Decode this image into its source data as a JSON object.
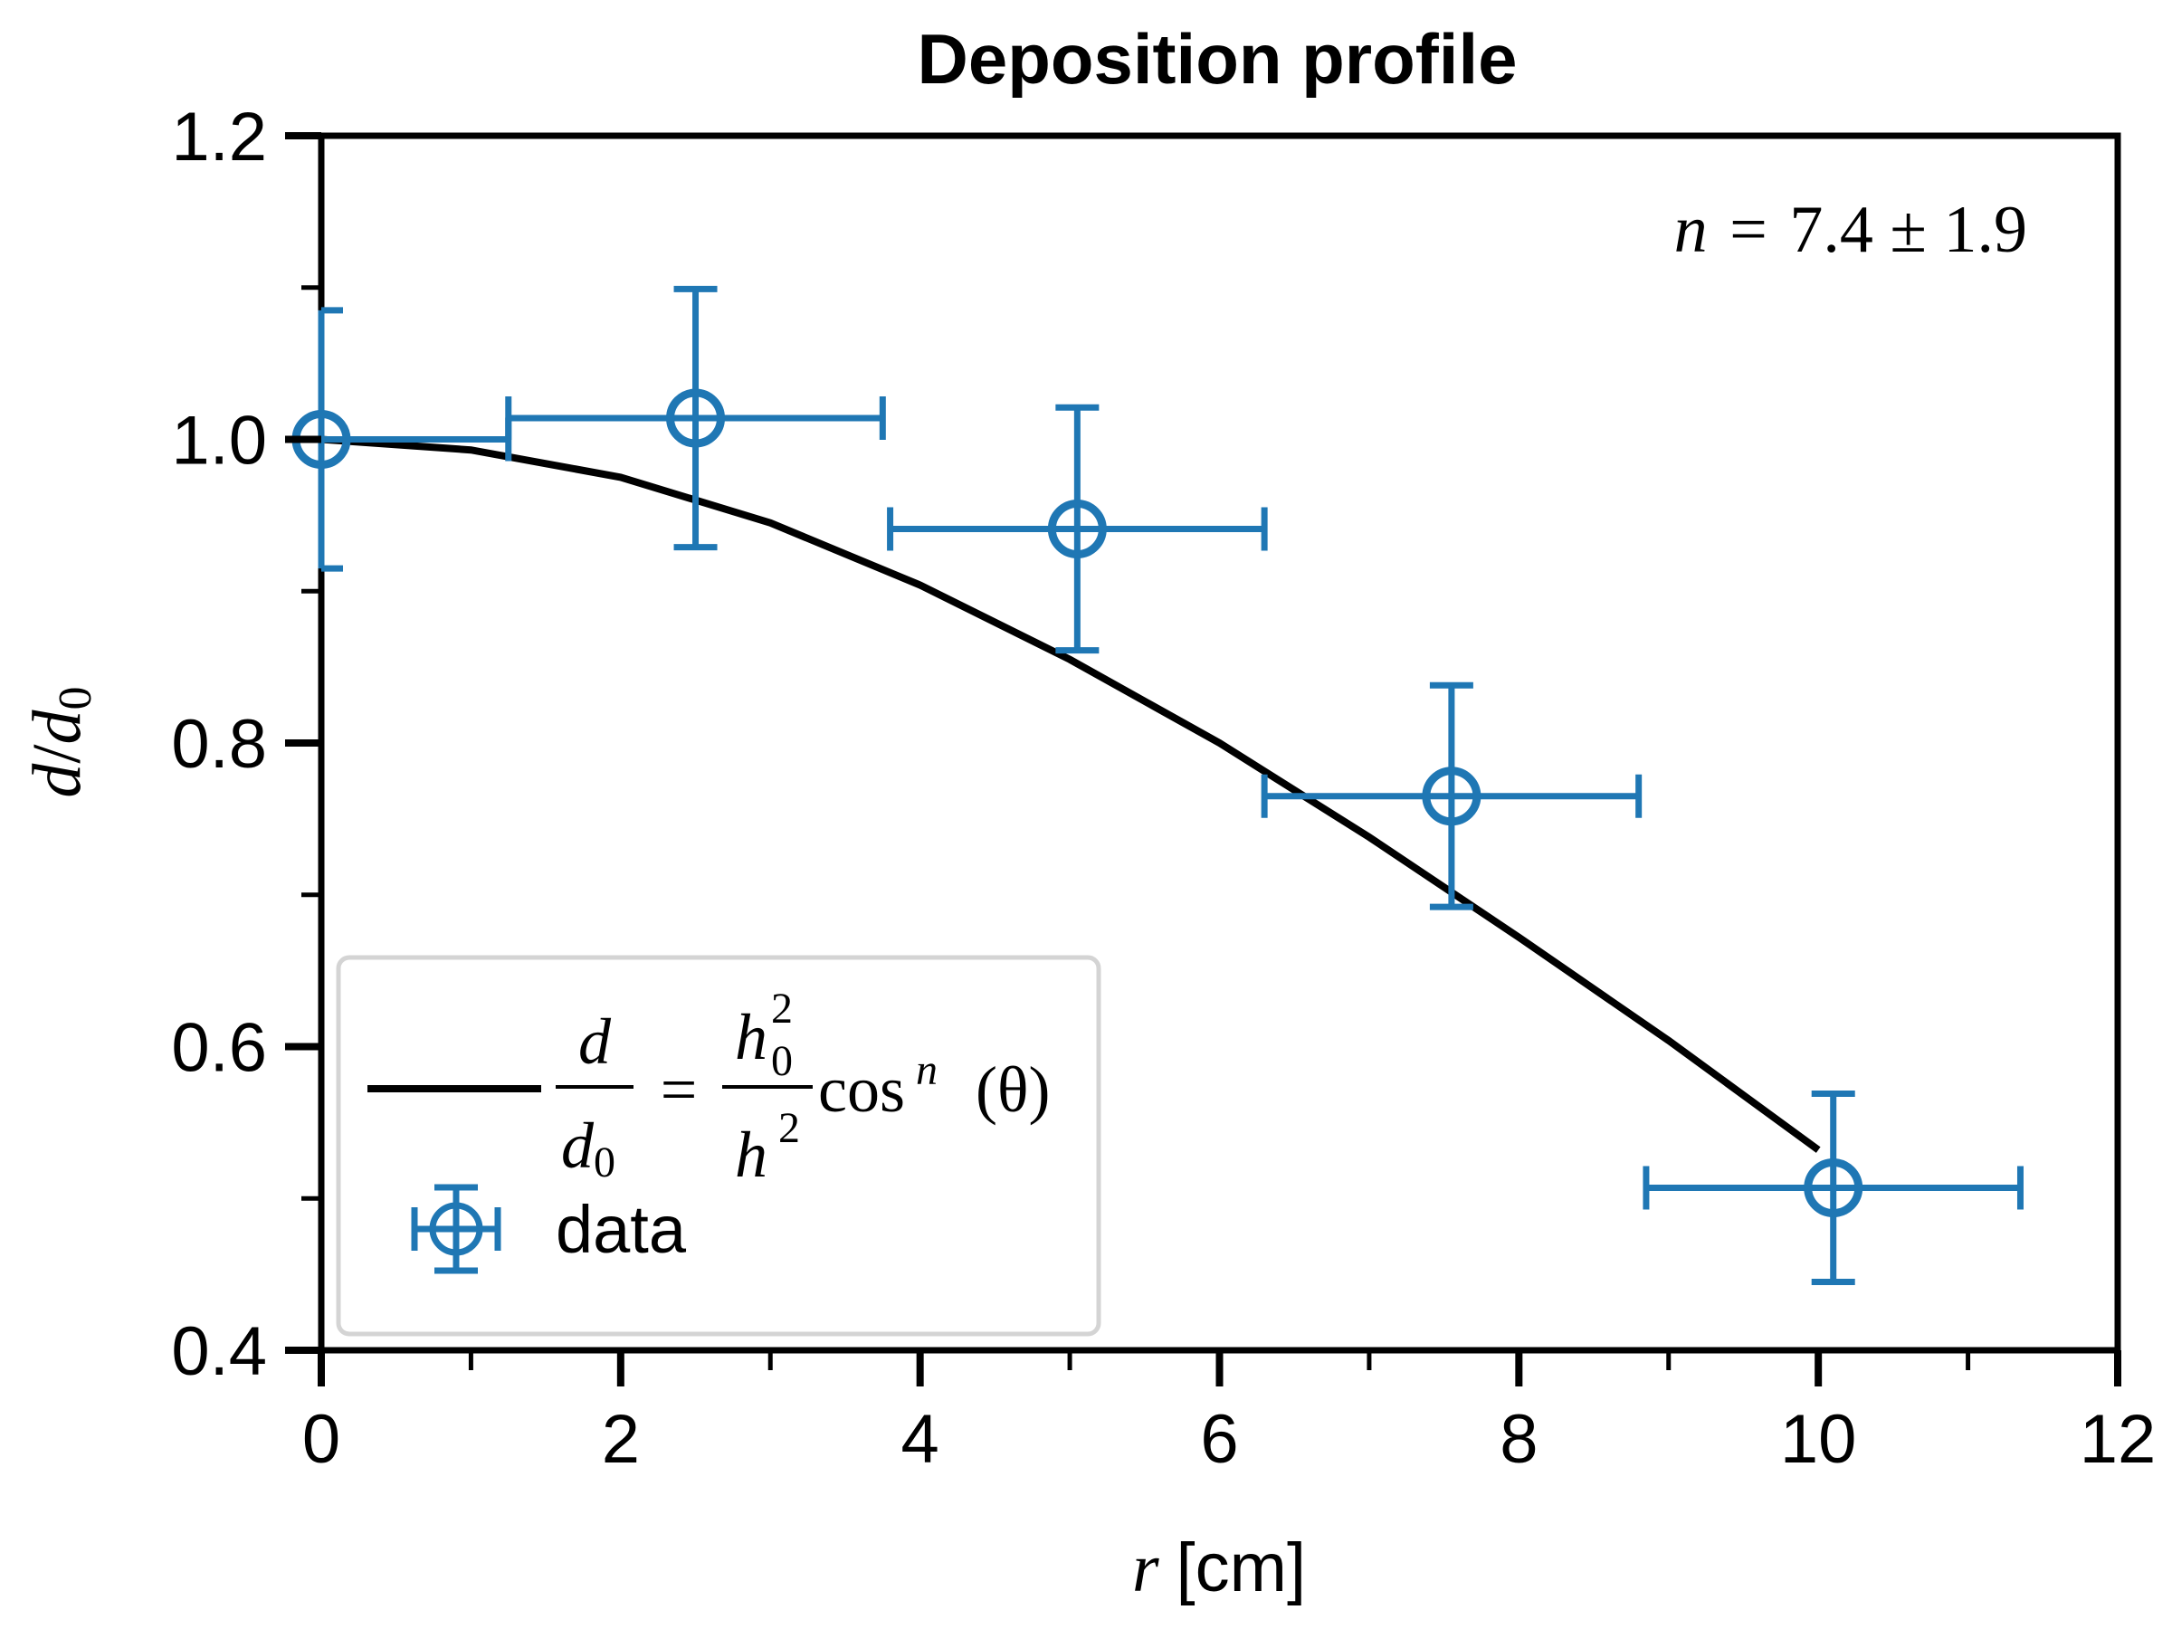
{
  "chart_data": {
    "type": "scatter",
    "title": "Deposition profile",
    "xlabel_var": "r",
    "xlabel_unit": "[cm]",
    "ylabel_num": "d",
    "ylabel_den": "d",
    "ylabel_den_sub": "0",
    "xlim": [
      0,
      12
    ],
    "ylim": [
      0.4,
      1.2
    ],
    "x_ticks": [
      0,
      2,
      4,
      6,
      8,
      10,
      12
    ],
    "x_minor_ticks": [
      1,
      3,
      5,
      7,
      9,
      11
    ],
    "y_ticks": [
      0.4,
      0.6,
      0.8,
      1.0,
      1.2
    ],
    "y_minor_ticks": [
      0.5,
      0.7,
      0.9,
      1.1
    ],
    "x_tick_labels": [
      "0",
      "2",
      "4",
      "6",
      "8",
      "10",
      "12"
    ],
    "y_tick_labels": [
      "0.4",
      "0.6",
      "0.8",
      "1.0",
      "1.2"
    ],
    "annotation": {
      "var": "n",
      "eq": "=",
      "value": "7.4",
      "pm": "±",
      "err": "1.9"
    },
    "legend_position": "lower-left",
    "legend": {
      "fit_label": {
        "lhs_num": "d",
        "lhs_den": "d",
        "lhs_den_sub": "0",
        "eq": "=",
        "rhs_num": "h",
        "rhs_num_sub": "0",
        "rhs_num_sup": "2",
        "rhs_den": "h",
        "rhs_den_sup": "2",
        "func": "cos",
        "func_sup": "n",
        "arg": "(θ)"
      },
      "data_label": "data"
    },
    "series": [
      {
        "name": "data",
        "type": "errorbar",
        "color": "#1f77b4",
        "points": [
          {
            "x": 0.0,
            "y": 1.0,
            "xerr": 1.25,
            "yerr": 0.085
          },
          {
            "x": 2.5,
            "y": 1.014,
            "xerr": 1.25,
            "yerr": 0.085
          },
          {
            "x": 5.05,
            "y": 0.941,
            "xerr": 1.25,
            "yerr": 0.08
          },
          {
            "x": 7.55,
            "y": 0.765,
            "xerr": 1.25,
            "yerr": 0.073
          },
          {
            "x": 10.1,
            "y": 0.507,
            "xerr": 1.25,
            "yerr": 0.062
          }
        ]
      },
      {
        "name": "fit",
        "type": "line",
        "color": "#000000",
        "points": [
          {
            "x": 0.0,
            "y": 1.0
          },
          {
            "x": 1.0,
            "y": 0.993
          },
          {
            "x": 2.0,
            "y": 0.975
          },
          {
            "x": 3.0,
            "y": 0.945
          },
          {
            "x": 4.0,
            "y": 0.904
          },
          {
            "x": 5.0,
            "y": 0.855
          },
          {
            "x": 6.0,
            "y": 0.8
          },
          {
            "x": 7.0,
            "y": 0.738
          },
          {
            "x": 8.0,
            "y": 0.672
          },
          {
            "x": 9.0,
            "y": 0.604
          },
          {
            "x": 10.0,
            "y": 0.532
          }
        ]
      }
    ]
  }
}
